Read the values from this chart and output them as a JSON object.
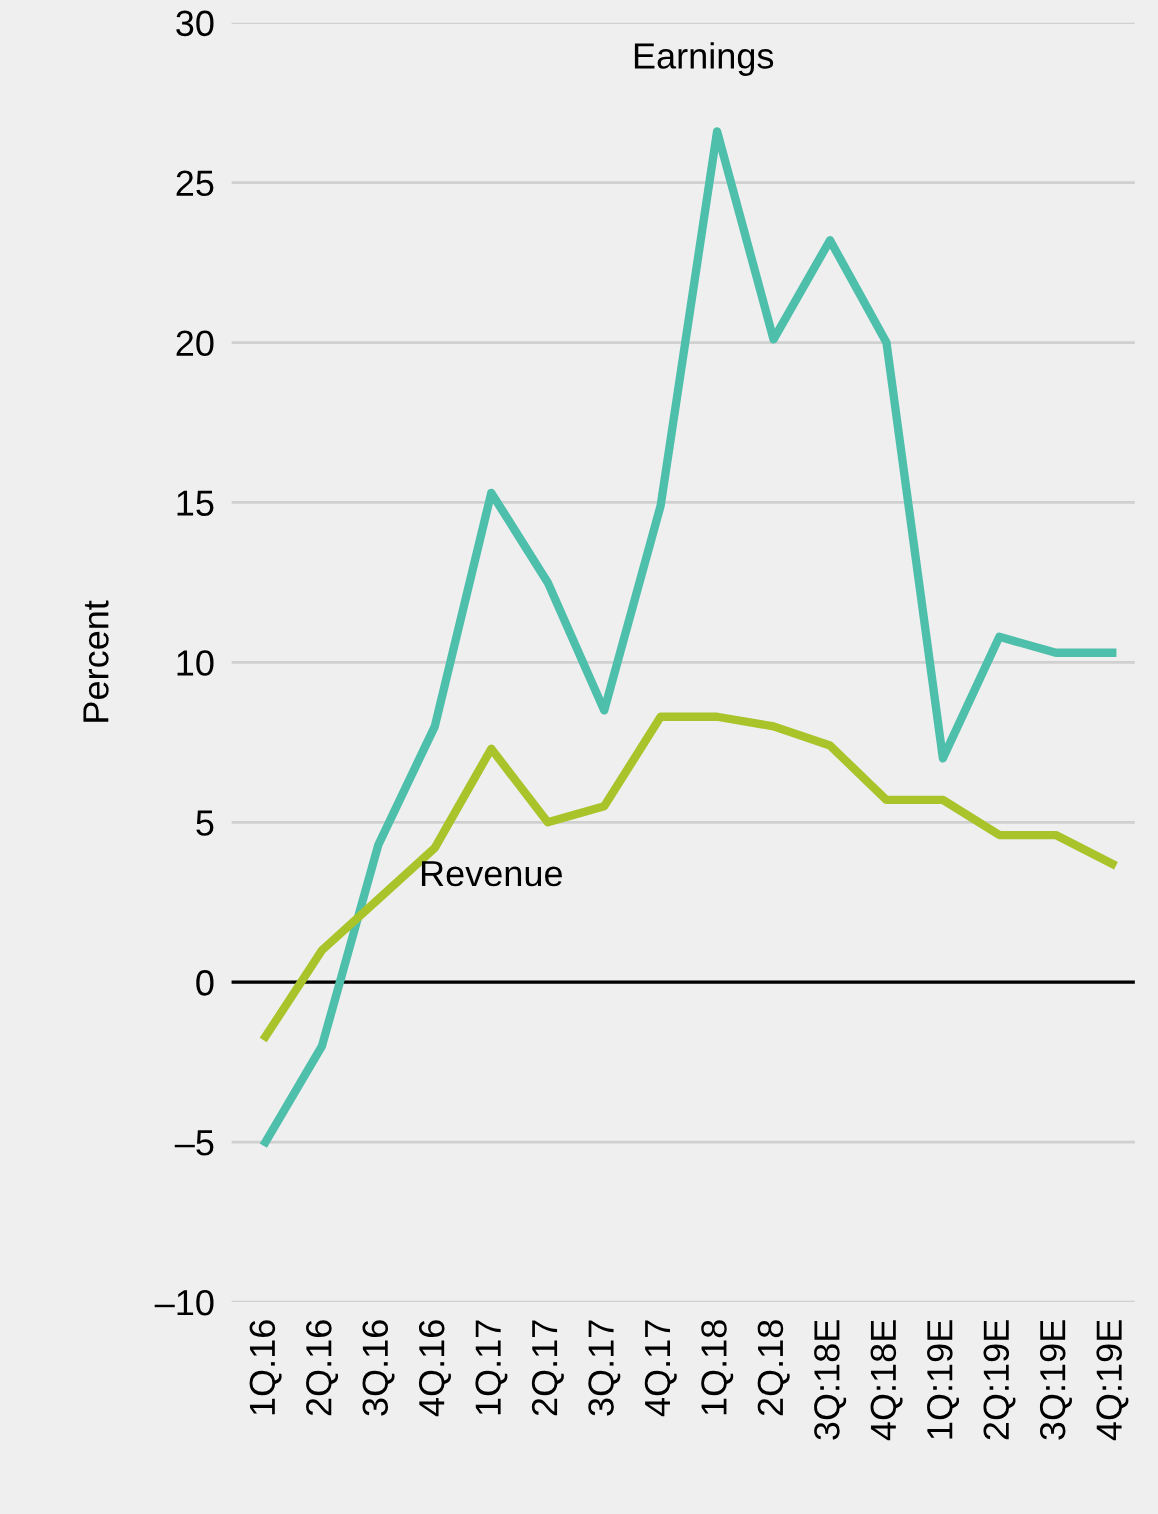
{
  "chart_data": {
    "type": "line",
    "ylabel": "Percent",
    "categories": [
      "1Q.16",
      "2Q.16",
      "3Q.16",
      "4Q.16",
      "1Q.17",
      "2Q.17",
      "3Q.17",
      "4Q.17",
      "1Q.18",
      "2Q.18",
      "3Q:18E",
      "4Q:18E",
      "1Q:19E",
      "2Q:19E",
      "3Q:19E",
      "4Q:19E"
    ],
    "series": [
      {
        "name": "Earnings",
        "color": "#4dbfab",
        "values": [
          -5.0,
          -2.0,
          4.3,
          8.0,
          15.3,
          12.5,
          8.5,
          14.9,
          26.6,
          20.1,
          23.2,
          20.0,
          7.0,
          10.8,
          10.3,
          10.3
        ]
      },
      {
        "name": "Revenue",
        "color": "#a9c42b",
        "values": [
          -1.7,
          1.0,
          2.6,
          4.2,
          7.3,
          5.0,
          5.5,
          8.3,
          8.3,
          8.0,
          7.4,
          5.7,
          5.7,
          4.6,
          4.6,
          3.7
        ]
      }
    ],
    "ylim": [
      -10,
      30
    ],
    "yticks": [
      {
        "value": -10,
        "label": "–10"
      },
      {
        "value": -5,
        "label": "–5"
      },
      0,
      5,
      10,
      15,
      20,
      25,
      30
    ],
    "ref_lines": [
      {
        "axis": "y",
        "value": 0,
        "color": "#000000"
      }
    ],
    "grid": "y",
    "legend": false,
    "marker": "none",
    "line_style": "solid"
  }
}
